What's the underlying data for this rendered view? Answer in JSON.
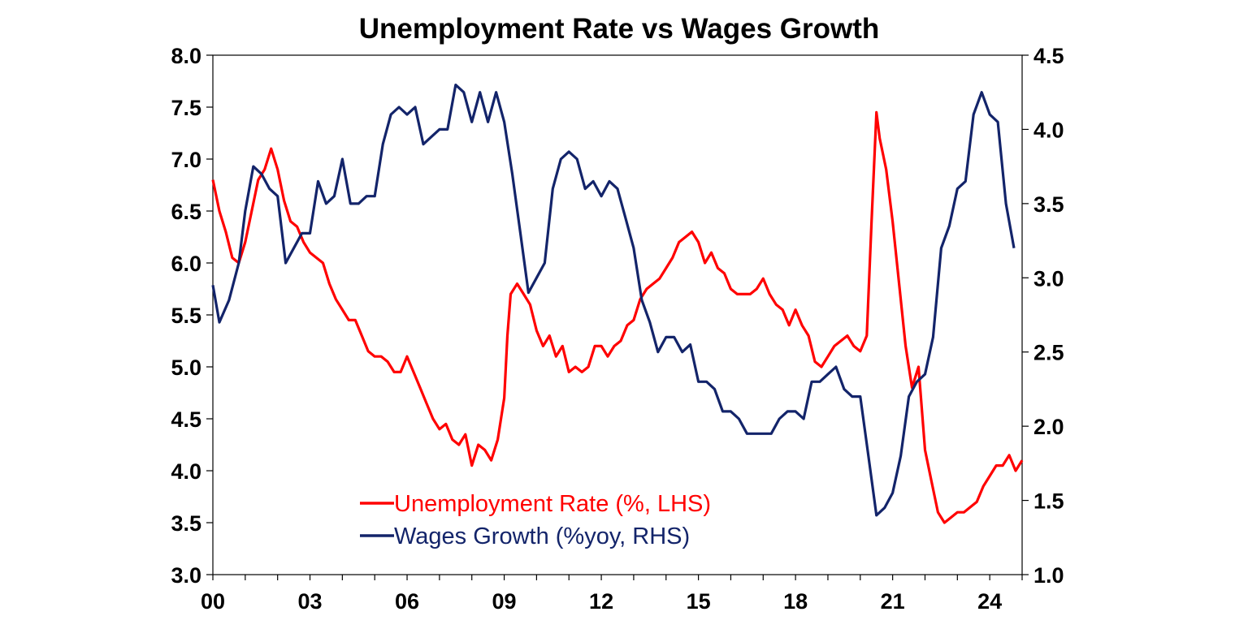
{
  "chart_data": {
    "type": "line",
    "title": "Unemployment Rate vs Wages Growth",
    "x_range": [
      2000,
      2025
    ],
    "x_tick_labels": [
      {
        "x": 2000,
        "label": "00"
      },
      {
        "x": 2003,
        "label": "03"
      },
      {
        "x": 2006,
        "label": "06"
      },
      {
        "x": 2009,
        "label": "09"
      },
      {
        "x": 2012,
        "label": "12"
      },
      {
        "x": 2015,
        "label": "15"
      },
      {
        "x": 2018,
        "label": "18"
      },
      {
        "x": 2021,
        "label": "21"
      },
      {
        "x": 2024,
        "label": "24"
      }
    ],
    "y_left": {
      "range": [
        3.0,
        8.0
      ],
      "ticks": [
        "3.0",
        "3.5",
        "4.0",
        "4.5",
        "5.0",
        "5.5",
        "6.0",
        "6.5",
        "7.0",
        "7.5",
        "8.0"
      ]
    },
    "y_right": {
      "range": [
        1.0,
        4.5
      ],
      "ticks": [
        "1.0",
        "1.5",
        "2.0",
        "2.5",
        "3.0",
        "3.5",
        "4.0",
        "4.5"
      ]
    },
    "grid": false,
    "legend_position": "bottom-left",
    "series": [
      {
        "name": "Unemployment Rate (%, LHS)",
        "axis": "left",
        "color": "#ff0000",
        "points": [
          [
            2000.0,
            6.8
          ],
          [
            2000.2,
            6.5
          ],
          [
            2000.4,
            6.3
          ],
          [
            2000.6,
            6.05
          ],
          [
            2000.8,
            6.0
          ],
          [
            2001.0,
            6.2
          ],
          [
            2001.2,
            6.5
          ],
          [
            2001.4,
            6.8
          ],
          [
            2001.6,
            6.9
          ],
          [
            2001.8,
            7.1
          ],
          [
            2002.0,
            6.9
          ],
          [
            2002.2,
            6.6
          ],
          [
            2002.4,
            6.4
          ],
          [
            2002.6,
            6.35
          ],
          [
            2002.8,
            6.2
          ],
          [
            2003.0,
            6.1
          ],
          [
            2003.2,
            6.05
          ],
          [
            2003.4,
            6.0
          ],
          [
            2003.6,
            5.8
          ],
          [
            2003.8,
            5.65
          ],
          [
            2004.0,
            5.55
          ],
          [
            2004.2,
            5.45
          ],
          [
            2004.4,
            5.45
          ],
          [
            2004.6,
            5.3
          ],
          [
            2004.8,
            5.15
          ],
          [
            2005.0,
            5.1
          ],
          [
            2005.2,
            5.1
          ],
          [
            2005.4,
            5.05
          ],
          [
            2005.6,
            4.95
          ],
          [
            2005.8,
            4.95
          ],
          [
            2006.0,
            5.1
          ],
          [
            2006.2,
            4.95
          ],
          [
            2006.4,
            4.8
          ],
          [
            2006.6,
            4.65
          ],
          [
            2006.8,
            4.5
          ],
          [
            2007.0,
            4.4
          ],
          [
            2007.2,
            4.45
          ],
          [
            2007.4,
            4.3
          ],
          [
            2007.6,
            4.25
          ],
          [
            2007.8,
            4.35
          ],
          [
            2008.0,
            4.05
          ],
          [
            2008.2,
            4.25
          ],
          [
            2008.4,
            4.2
          ],
          [
            2008.6,
            4.1
          ],
          [
            2008.8,
            4.3
          ],
          [
            2009.0,
            4.7
          ],
          [
            2009.1,
            5.3
          ],
          [
            2009.2,
            5.7
          ],
          [
            2009.4,
            5.8
          ],
          [
            2009.6,
            5.7
          ],
          [
            2009.8,
            5.6
          ],
          [
            2010.0,
            5.35
          ],
          [
            2010.2,
            5.2
          ],
          [
            2010.4,
            5.3
          ],
          [
            2010.6,
            5.1
          ],
          [
            2010.8,
            5.2
          ],
          [
            2011.0,
            4.95
          ],
          [
            2011.2,
            5.0
          ],
          [
            2011.4,
            4.95
          ],
          [
            2011.6,
            5.0
          ],
          [
            2011.8,
            5.2
          ],
          [
            2012.0,
            5.2
          ],
          [
            2012.2,
            5.1
          ],
          [
            2012.4,
            5.2
          ],
          [
            2012.6,
            5.25
          ],
          [
            2012.8,
            5.4
          ],
          [
            2013.0,
            5.45
          ],
          [
            2013.2,
            5.65
          ],
          [
            2013.4,
            5.75
          ],
          [
            2013.6,
            5.8
          ],
          [
            2013.8,
            5.85
          ],
          [
            2014.0,
            5.95
          ],
          [
            2014.2,
            6.05
          ],
          [
            2014.4,
            6.2
          ],
          [
            2014.6,
            6.25
          ],
          [
            2014.8,
            6.3
          ],
          [
            2015.0,
            6.2
          ],
          [
            2015.2,
            6.0
          ],
          [
            2015.4,
            6.1
          ],
          [
            2015.6,
            5.95
          ],
          [
            2015.8,
            5.9
          ],
          [
            2016.0,
            5.75
          ],
          [
            2016.2,
            5.7
          ],
          [
            2016.4,
            5.7
          ],
          [
            2016.6,
            5.7
          ],
          [
            2016.8,
            5.75
          ],
          [
            2017.0,
            5.85
          ],
          [
            2017.2,
            5.7
          ],
          [
            2017.4,
            5.6
          ],
          [
            2017.6,
            5.55
          ],
          [
            2017.8,
            5.4
          ],
          [
            2018.0,
            5.55
          ],
          [
            2018.2,
            5.4
          ],
          [
            2018.4,
            5.3
          ],
          [
            2018.6,
            5.05
          ],
          [
            2018.8,
            5.0
          ],
          [
            2019.0,
            5.1
          ],
          [
            2019.2,
            5.2
          ],
          [
            2019.4,
            5.25
          ],
          [
            2019.6,
            5.3
          ],
          [
            2019.8,
            5.2
          ],
          [
            2020.0,
            5.15
          ],
          [
            2020.2,
            5.3
          ],
          [
            2020.35,
            6.4
          ],
          [
            2020.5,
            7.45
          ],
          [
            2020.6,
            7.2
          ],
          [
            2020.8,
            6.9
          ],
          [
            2021.0,
            6.4
          ],
          [
            2021.2,
            5.8
          ],
          [
            2021.4,
            5.2
          ],
          [
            2021.6,
            4.8
          ],
          [
            2021.8,
            5.0
          ],
          [
            2021.9,
            4.6
          ],
          [
            2022.0,
            4.2
          ],
          [
            2022.2,
            3.9
          ],
          [
            2022.4,
            3.6
          ],
          [
            2022.6,
            3.5
          ],
          [
            2022.8,
            3.55
          ],
          [
            2023.0,
            3.6
          ],
          [
            2023.2,
            3.6
          ],
          [
            2023.4,
            3.65
          ],
          [
            2023.6,
            3.7
          ],
          [
            2023.8,
            3.85
          ],
          [
            2024.0,
            3.95
          ],
          [
            2024.2,
            4.05
          ],
          [
            2024.4,
            4.05
          ],
          [
            2024.6,
            4.15
          ],
          [
            2024.8,
            4.0
          ],
          [
            2025.0,
            4.1
          ]
        ]
      },
      {
        "name": "Wages Growth (%yoy, RHS)",
        "axis": "right",
        "color": "#13246a",
        "points": [
          [
            2000.0,
            2.95
          ],
          [
            2000.2,
            2.7
          ],
          [
            2000.5,
            2.85
          ],
          [
            2000.8,
            3.1
          ],
          [
            2001.0,
            3.45
          ],
          [
            2001.25,
            3.75
          ],
          [
            2001.5,
            3.7
          ],
          [
            2001.75,
            3.6
          ],
          [
            2002.0,
            3.55
          ],
          [
            2002.25,
            3.1
          ],
          [
            2002.5,
            3.2
          ],
          [
            2002.75,
            3.3
          ],
          [
            2003.0,
            3.3
          ],
          [
            2003.25,
            3.65
          ],
          [
            2003.5,
            3.5
          ],
          [
            2003.75,
            3.55
          ],
          [
            2004.0,
            3.8
          ],
          [
            2004.25,
            3.5
          ],
          [
            2004.5,
            3.5
          ],
          [
            2004.75,
            3.55
          ],
          [
            2005.0,
            3.55
          ],
          [
            2005.25,
            3.9
          ],
          [
            2005.5,
            4.1
          ],
          [
            2005.75,
            4.15
          ],
          [
            2006.0,
            4.1
          ],
          [
            2006.25,
            4.15
          ],
          [
            2006.5,
            3.9
          ],
          [
            2006.75,
            3.95
          ],
          [
            2007.0,
            4.0
          ],
          [
            2007.25,
            4.0
          ],
          [
            2007.5,
            4.3
          ],
          [
            2007.75,
            4.25
          ],
          [
            2008.0,
            4.05
          ],
          [
            2008.25,
            4.25
          ],
          [
            2008.5,
            4.05
          ],
          [
            2008.75,
            4.25
          ],
          [
            2009.0,
            4.05
          ],
          [
            2009.25,
            3.7
          ],
          [
            2009.5,
            3.3
          ],
          [
            2009.75,
            2.9
          ],
          [
            2010.0,
            3.0
          ],
          [
            2010.25,
            3.1
          ],
          [
            2010.5,
            3.6
          ],
          [
            2010.75,
            3.8
          ],
          [
            2011.0,
            3.85
          ],
          [
            2011.25,
            3.8
          ],
          [
            2011.5,
            3.6
          ],
          [
            2011.75,
            3.65
          ],
          [
            2012.0,
            3.55
          ],
          [
            2012.25,
            3.65
          ],
          [
            2012.5,
            3.6
          ],
          [
            2012.75,
            3.4
          ],
          [
            2013.0,
            3.2
          ],
          [
            2013.25,
            2.85
          ],
          [
            2013.5,
            2.7
          ],
          [
            2013.75,
            2.5
          ],
          [
            2014.0,
            2.6
          ],
          [
            2014.25,
            2.6
          ],
          [
            2014.5,
            2.5
          ],
          [
            2014.75,
            2.55
          ],
          [
            2015.0,
            2.3
          ],
          [
            2015.25,
            2.3
          ],
          [
            2015.5,
            2.25
          ],
          [
            2015.75,
            2.1
          ],
          [
            2016.0,
            2.1
          ],
          [
            2016.25,
            2.05
          ],
          [
            2016.5,
            1.95
          ],
          [
            2016.75,
            1.95
          ],
          [
            2017.0,
            1.95
          ],
          [
            2017.25,
            1.95
          ],
          [
            2017.5,
            2.05
          ],
          [
            2017.75,
            2.1
          ],
          [
            2018.0,
            2.1
          ],
          [
            2018.25,
            2.05
          ],
          [
            2018.5,
            2.3
          ],
          [
            2018.75,
            2.3
          ],
          [
            2019.0,
            2.35
          ],
          [
            2019.25,
            2.4
          ],
          [
            2019.5,
            2.25
          ],
          [
            2019.75,
            2.2
          ],
          [
            2020.0,
            2.2
          ],
          [
            2020.25,
            1.8
          ],
          [
            2020.5,
            1.4
          ],
          [
            2020.75,
            1.45
          ],
          [
            2021.0,
            1.55
          ],
          [
            2021.25,
            1.8
          ],
          [
            2021.5,
            2.2
          ],
          [
            2021.75,
            2.3
          ],
          [
            2022.0,
            2.35
          ],
          [
            2022.25,
            2.6
          ],
          [
            2022.5,
            3.2
          ],
          [
            2022.75,
            3.35
          ],
          [
            2023.0,
            3.6
          ],
          [
            2023.25,
            3.65
          ],
          [
            2023.5,
            4.1
          ],
          [
            2023.75,
            4.25
          ],
          [
            2024.0,
            4.1
          ],
          [
            2024.25,
            4.05
          ],
          [
            2024.5,
            3.5
          ],
          [
            2024.75,
            3.2
          ]
        ]
      }
    ]
  }
}
